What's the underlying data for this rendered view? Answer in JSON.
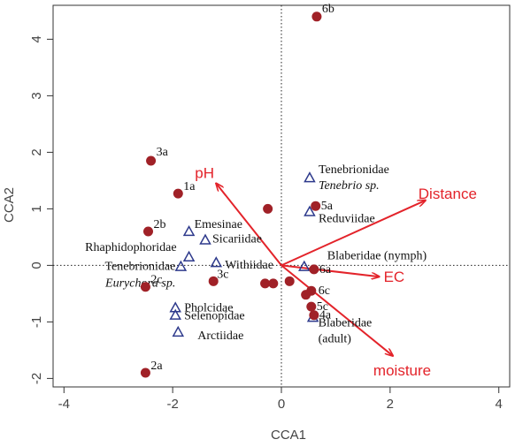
{
  "chart_data": {
    "type": "scatter",
    "title": "",
    "xlabel": "CCA1",
    "ylabel": "CCA2",
    "xlim": [
      -4.2,
      4.2
    ],
    "ylim": [
      -2.15,
      4.6
    ],
    "xticks": [
      "-4",
      "-2",
      "0",
      "2",
      "4"
    ],
    "xtick_values": [
      -4,
      -2,
      0,
      2,
      4
    ],
    "yticks": [
      "-2",
      "-1",
      "0",
      "1",
      "2",
      "3",
      "4"
    ],
    "ytick_values": [
      -2,
      -1,
      0,
      1,
      2,
      3,
      4
    ],
    "reference_lines": {
      "x": 0,
      "y": 0,
      "style": "dotted"
    },
    "site_color": "#a02127",
    "taxon_color": "#2e3a8c",
    "env_color": "#e3232a",
    "sites": [
      {
        "label": "6b",
        "x": 0.65,
        "y": 4.4
      },
      {
        "label": "3a",
        "x": -2.4,
        "y": 1.85
      },
      {
        "label": "1a",
        "x": -1.9,
        "y": 1.27
      },
      {
        "label": "",
        "x": -0.25,
        "y": 1.0
      },
      {
        "label": "5a",
        "x": 0.63,
        "y": 1.05
      },
      {
        "label": "2b",
        "x": -2.45,
        "y": 0.6
      },
      {
        "label": "6a",
        "x": 0.6,
        "y": -0.07
      },
      {
        "label": "2c",
        "x": -2.5,
        "y": -0.38
      },
      {
        "label": "3c",
        "x": -1.25,
        "y": -0.28
      },
      {
        "label": "",
        "x": -0.3,
        "y": -0.32
      },
      {
        "label": "",
        "x": -0.15,
        "y": -0.32
      },
      {
        "label": "",
        "x": 0.15,
        "y": -0.28
      },
      {
        "label": "6c",
        "x": 0.55,
        "y": -0.45
      },
      {
        "label": "",
        "x": 0.45,
        "y": -0.52
      },
      {
        "label": "5c",
        "x": 0.55,
        "y": -0.73
      },
      {
        "label": "4a",
        "x": 0.6,
        "y": -0.88
      },
      {
        "label": "2a",
        "x": -2.5,
        "y": -1.9
      }
    ],
    "taxa": [
      {
        "label": "Tenebrionidae",
        "label2": "Tenebrio sp.",
        "x": 0.52,
        "y": 1.55
      },
      {
        "label": "Reduviidae",
        "x": 0.52,
        "y": 0.95
      },
      {
        "label": "Emesinae",
        "x": -1.7,
        "y": 0.6
      },
      {
        "label": "Sicariidae",
        "x": -1.4,
        "y": 0.45
      },
      {
        "label": "Rhaphidophoridae",
        "x": -1.7,
        "y": 0.15
      },
      {
        "label": "Withiidae",
        "x": -1.2,
        "y": 0.05
      },
      {
        "label": "Tenebrionidae",
        "label2": "Eurychora sp.",
        "x": -1.85,
        "y": -0.02
      },
      {
        "label": "Blaberidae (nymph)",
        "x": 0.42,
        "y": -0.02
      },
      {
        "label": "Pholcidae",
        "x": -1.95,
        "y": -0.75
      },
      {
        "label": "Selenopidae",
        "x": -1.95,
        "y": -0.88
      },
      {
        "label": "Blaberidae",
        "label2": "(adult)",
        "x": 0.58,
        "y": -0.92
      },
      {
        "label": "Arctiidae",
        "x": -1.9,
        "y": -1.18
      }
    ],
    "env_vectors": [
      {
        "name": "pH",
        "x": -1.2,
        "y": 1.45
      },
      {
        "name": "Distance",
        "x": 2.65,
        "y": 1.15
      },
      {
        "name": "EC",
        "x": 1.8,
        "y": -0.2
      },
      {
        "name": "moisture",
        "x": 2.05,
        "y": -1.6
      }
    ]
  }
}
